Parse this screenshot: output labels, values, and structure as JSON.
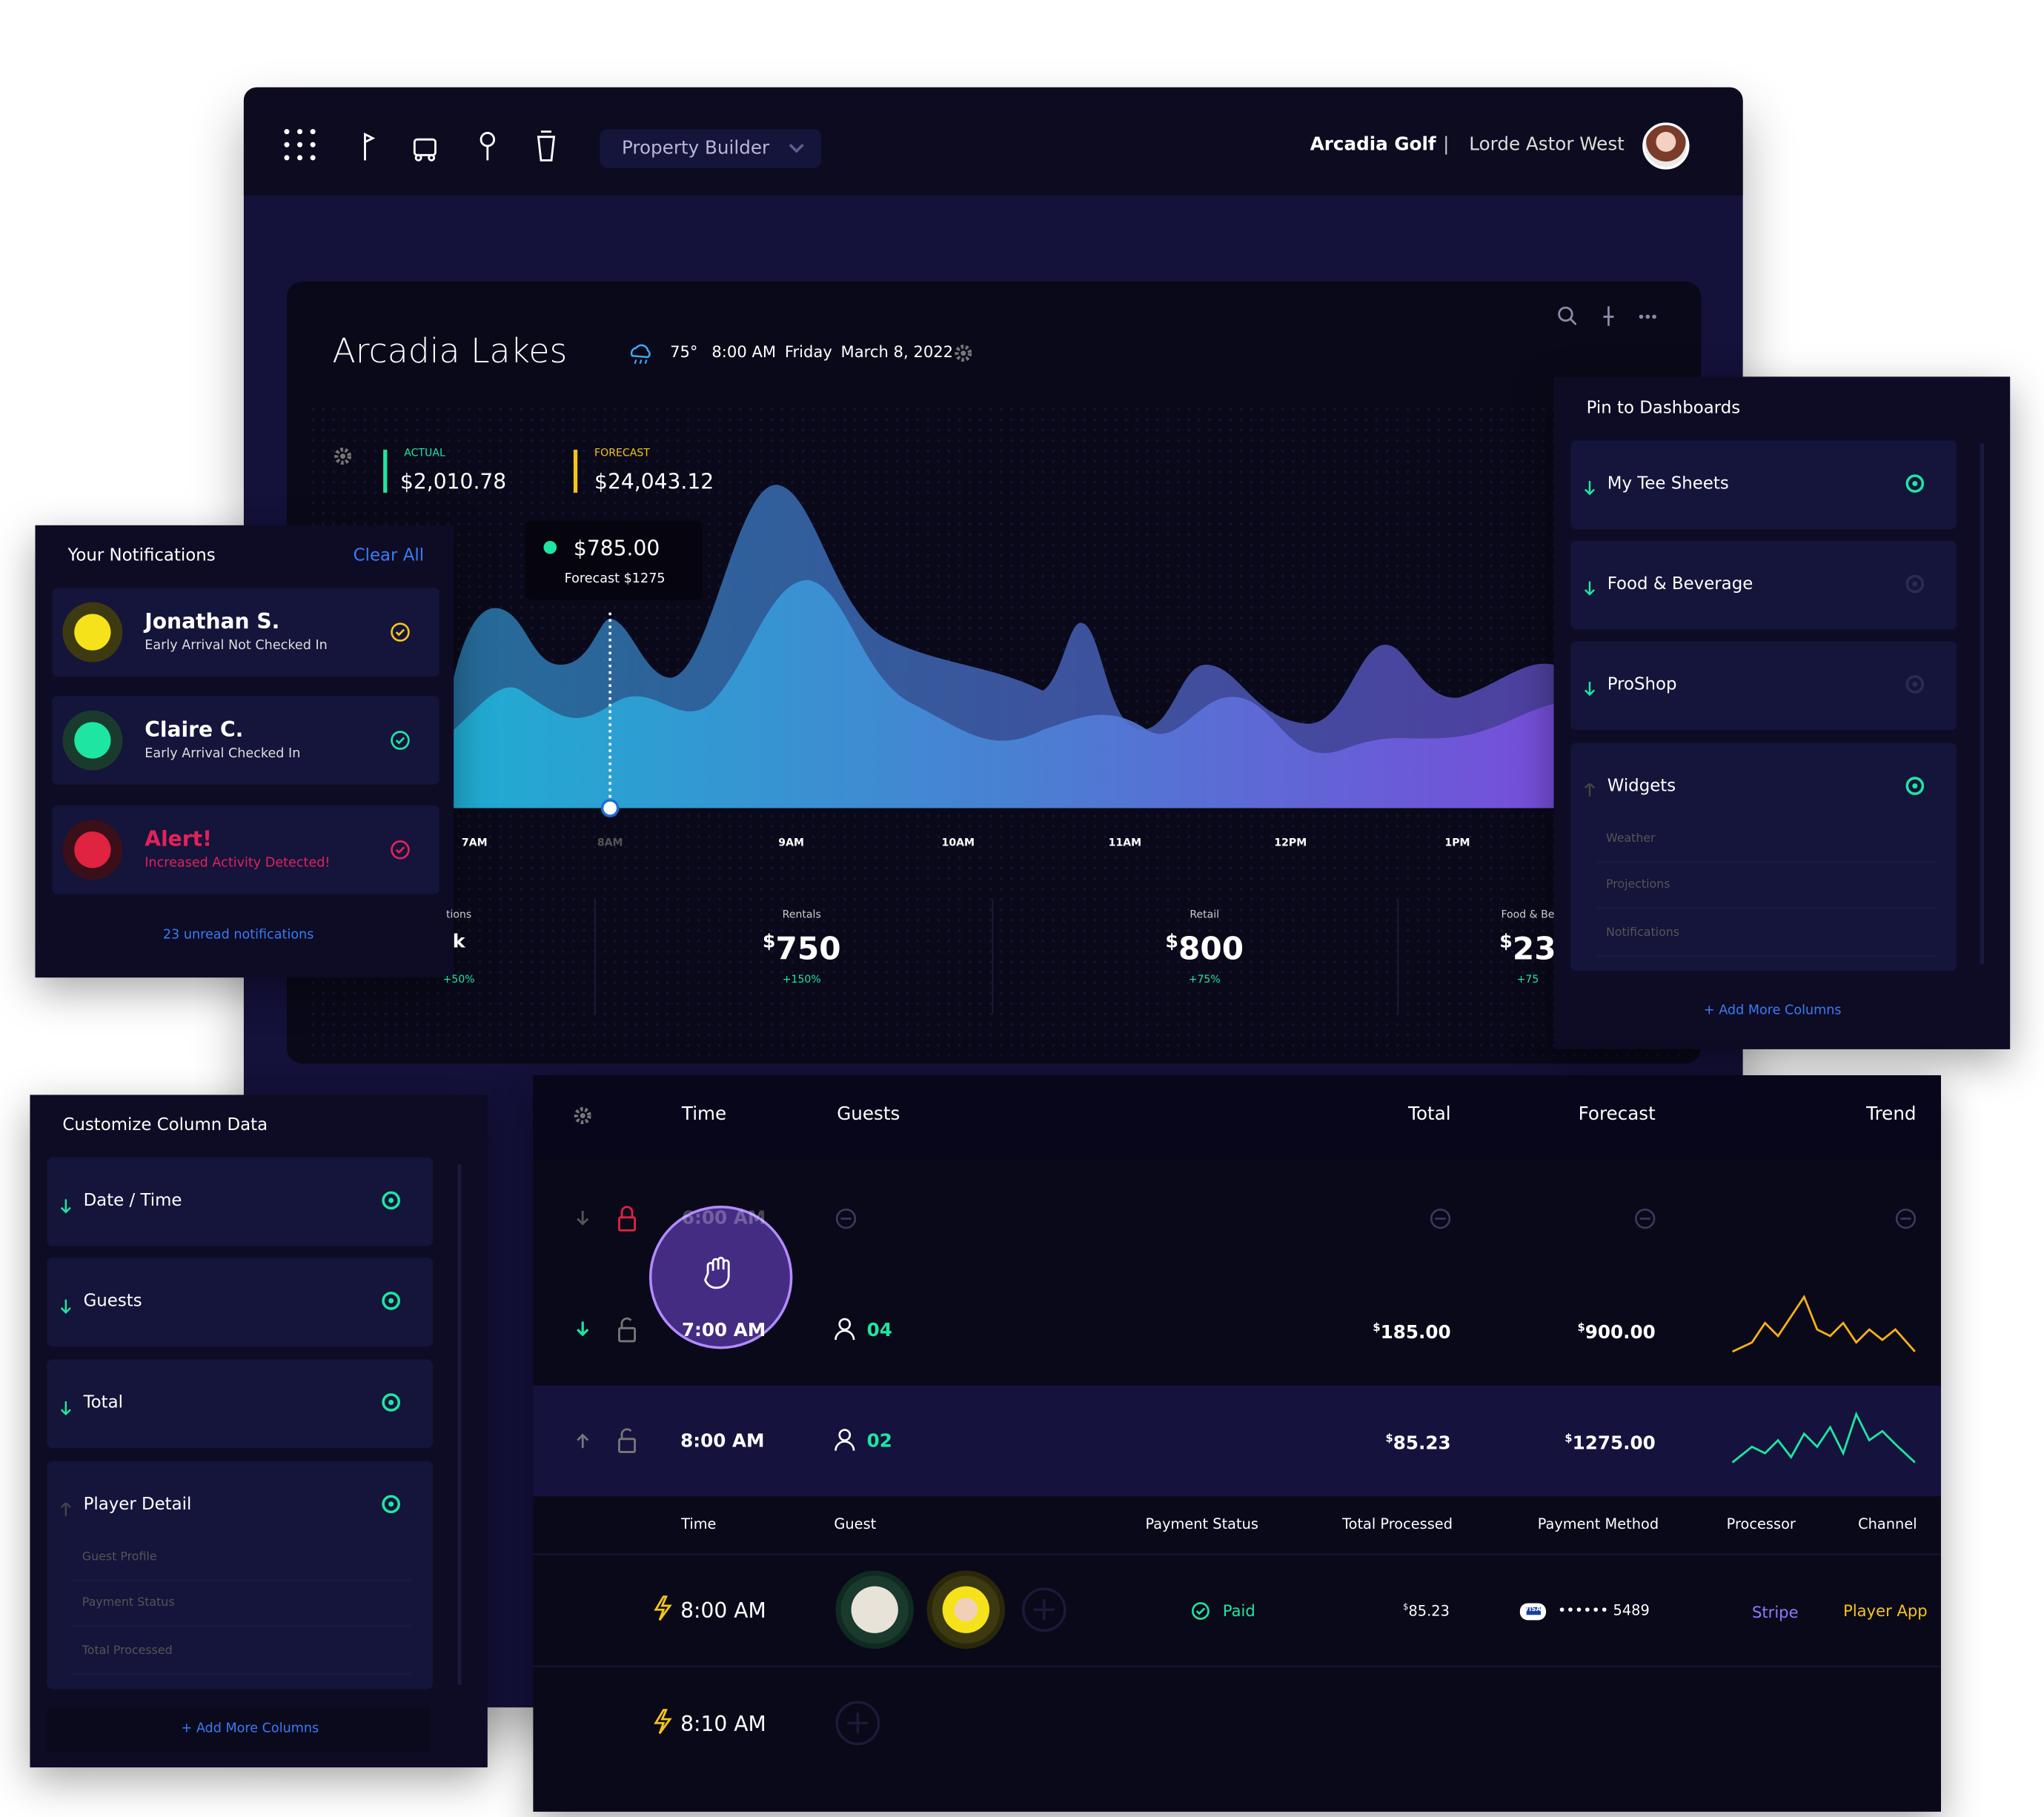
{
  "nav": {
    "menu": "Property Builder",
    "org": "Arcadia Golf",
    "separator": "|",
    "user": "Lorde Astor West"
  },
  "dashboard": {
    "title": "Arcadia Lakes",
    "temp": "75°",
    "time": "8:00 AM",
    "day": "Friday",
    "date": "March 8, 2022",
    "actual": {
      "label": "ACTUAL",
      "value": "$2,010.78"
    },
    "forecast": {
      "label": "FORECAST",
      "value": "$24,043.12"
    },
    "tooltip": {
      "value": "$785.00",
      "forecast": "Forecast $1275"
    },
    "x_labels": [
      "7AM",
      "8AM",
      "9AM",
      "10AM",
      "11AM",
      "12PM",
      "1PM"
    ],
    "stats": [
      {
        "label": "tions",
        "value": "k",
        "change": "+50%"
      },
      {
        "label": "Rentals",
        "value": "$750",
        "change": "+150%"
      },
      {
        "label": "Retail",
        "value": "$800",
        "change": "+75%"
      },
      {
        "label": "Food & Be",
        "value": "$23",
        "change": "+75"
      }
    ]
  },
  "notifications": {
    "title": "Your Notifications",
    "clear": "Clear All",
    "items": [
      {
        "name": "Jonathan S.",
        "text": "Early Arrival Not Checked In"
      },
      {
        "name": "Claire C.",
        "text": "Early Arrival Checked In"
      },
      {
        "name": "Alert!",
        "text": "Increased Activity Detected!"
      }
    ],
    "footer": "23 unread notifications"
  },
  "pin_panel": {
    "title": "Pin to Dashboards",
    "items": [
      "My Tee Sheets",
      "Food & Beverage",
      "ProShop",
      "Widgets"
    ],
    "sub_items": [
      "Weather",
      "Projections",
      "Notifications"
    ],
    "footer": "+ Add More Columns"
  },
  "column_panel": {
    "title": "Customize Column Data",
    "items": [
      "Date / Time",
      "Guests",
      "Total",
      "Player Detail"
    ],
    "sub_items": [
      "Guest Profile",
      "Payment Status",
      "Total Processed"
    ],
    "footer": "+ Add More Columns"
  },
  "table": {
    "headers": [
      "Time",
      "Guests",
      "Total",
      "Forecast",
      "Trend"
    ],
    "rows": [
      {
        "time": "6:00 AM"
      },
      {
        "time": "7:00 AM",
        "guests": "04",
        "total": "$185.00",
        "forecast": "$900.00"
      },
      {
        "time": "8:00 AM",
        "guests": "02",
        "total": "$85.23",
        "forecast": "$1275.00"
      }
    ],
    "detail_headers": [
      "Time",
      "Guest",
      "Payment Status",
      "Total Processed",
      "Payment Method",
      "Processor",
      "Channel"
    ],
    "detail_rows": [
      {
        "time": "8:00 AM",
        "status": "Paid",
        "total": "$85.23",
        "card": "VISA",
        "method": "•••••• 5489",
        "processor": "Stripe",
        "channel": "Player App"
      },
      {
        "time": "8:10 AM"
      }
    ]
  }
}
